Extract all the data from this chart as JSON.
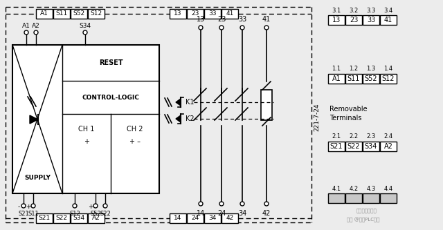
{
  "bg_color": "#ececec",
  "line_color": "#000000",
  "box_color": "#ffffff",
  "figsize": [
    6.4,
    3.33
  ],
  "dpi": 100,
  "top_row1": [
    "A1",
    "S11",
    "S52",
    "S12"
  ],
  "top_row2": [
    "13",
    "23",
    "33",
    "41"
  ],
  "bot_row1": [
    "S21",
    "S22",
    "S34",
    "A2"
  ],
  "bot_row2": [
    "14",
    "24",
    "34",
    "42"
  ],
  "right_top_labels": [
    "3.1",
    "3.2",
    "3.3",
    "3.4"
  ],
  "right_top_vals": [
    "13",
    "23",
    "33",
    "41"
  ],
  "right_mid1_labels": [
    "1.1",
    "1.2",
    "1.3",
    "1.4"
  ],
  "right_mid1_vals": [
    "A1",
    "S11",
    "S52",
    "S12"
  ],
  "right_mid2_labels": [
    "2.1",
    "2.2",
    "2.3",
    "2.4"
  ],
  "right_mid2_vals": [
    "S21",
    "S22",
    "S34",
    "A2"
  ],
  "right_bot_labels": [
    "4.1",
    "4.2",
    "4.3",
    "4.4"
  ],
  "removable_terminals_line1": "Removable",
  "removable_terminals_line2": "Terminals",
  "part_number": "221-7-24",
  "supply_text": "SUPPLY",
  "reset_text": "RESET",
  "control_logic_text": "CONTROL-LOGIC",
  "ch1_text": "CH 1",
  "ch2_text": "CH 2",
  "ch1_sub": "+",
  "ch2_sub": "+ –",
  "k1_text": "K1",
  "k2_text": "K2",
  "contact_top_labels": [
    "13",
    "23",
    "33",
    "41"
  ],
  "contact_bot_labels": [
    "14",
    "24",
    "34",
    "42"
  ]
}
